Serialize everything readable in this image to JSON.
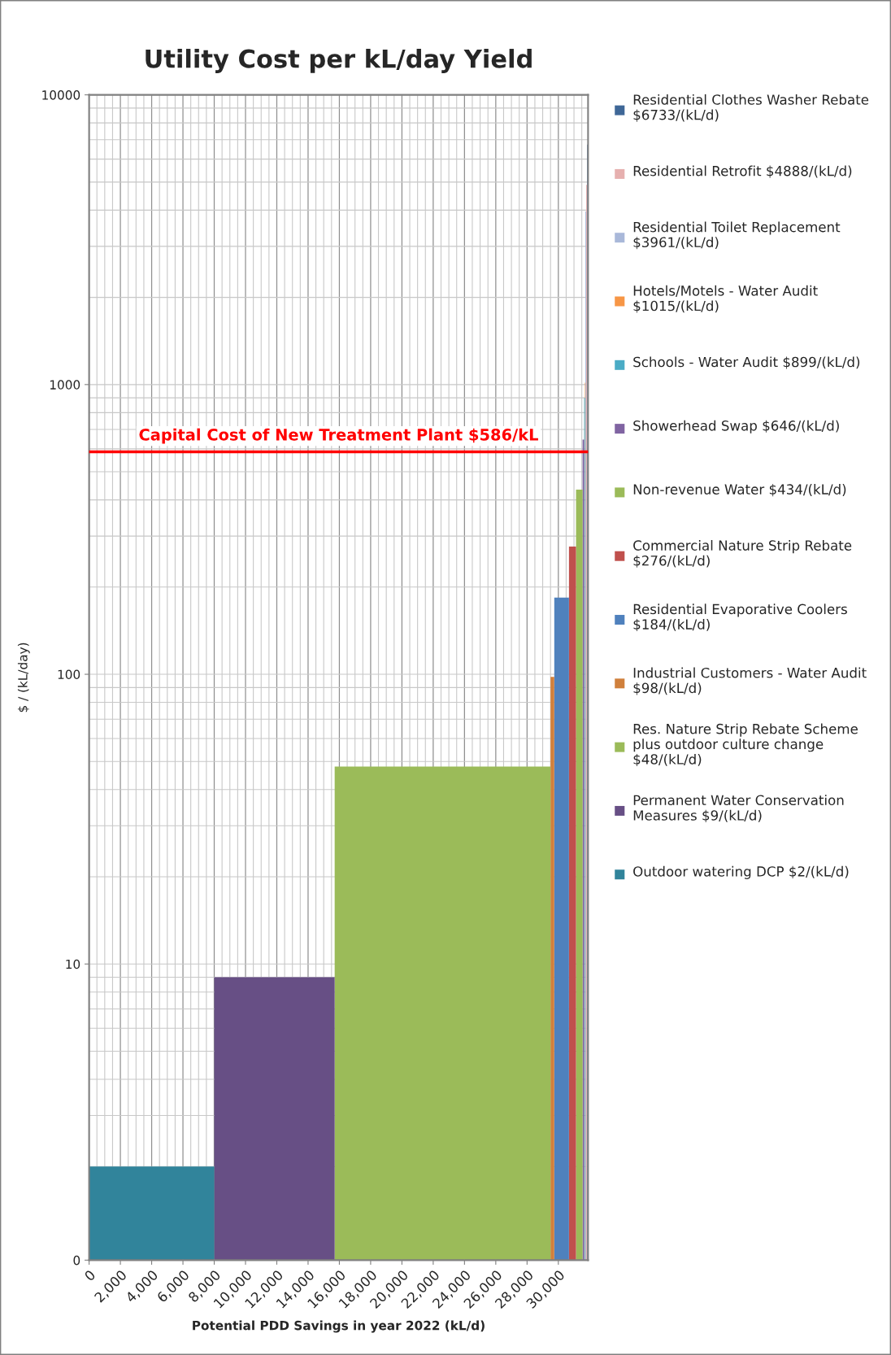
{
  "chart_data": {
    "type": "area",
    "title": "Utility Cost per kL/day Yield",
    "xlabel": "Potential PDD Savings in year 2022 (kL/d)",
    "ylabel": "$ / (kL/day)",
    "log": "y",
    "ylim": [
      0,
      10000
    ],
    "yticks": [
      0,
      10,
      100,
      1000,
      10000
    ],
    "xlim": [
      0,
      31900
    ],
    "xticks": [
      0,
      {
        "value": 2000,
        "label": "2,000"
      },
      {
        "value": 4000,
        "label": "4,000"
      },
      {
        "value": 6000,
        "label": "6,000"
      },
      {
        "value": 8000,
        "label": "8,000"
      },
      {
        "value": 10000,
        "label": "10,000"
      },
      {
        "value": 12000,
        "label": "12,000"
      },
      {
        "value": 14000,
        "label": "14,000"
      },
      {
        "value": 16000,
        "label": "16,000"
      },
      {
        "value": 18000,
        "label": "18,000"
      },
      {
        "value": 20000,
        "label": "20,000"
      },
      {
        "value": 22000,
        "label": "22,000"
      },
      {
        "value": 24000,
        "label": "24,000"
      },
      {
        "value": 26000,
        "label": "26,000"
      },
      {
        "value": 28000,
        "label": "28,000"
      },
      {
        "value": 30000,
        "label": "30,000"
      }
    ],
    "grid": true,
    "legend": "right",
    "ref_lines": [
      {
        "axis": "y",
        "value": 586,
        "label": "Capital Cost of New Treatment Plant $586/kL",
        "color": "#ff0000"
      }
    ],
    "series": [
      {
        "name": "Residential Clothes Washer Rebate $6733/(kL/d)",
        "color": "#3f6797",
        "x": [
          31840,
          31880
        ],
        "values": [
          6733,
          6733
        ]
      },
      {
        "name": "Residential Retrofit $4888/(kL/d)",
        "color": "#e6b0af",
        "x": [
          31780,
          31840
        ],
        "values": [
          4888,
          4888
        ]
      },
      {
        "name": "Residential Toilet Replacement $3961/(kL/d)",
        "color": "#a9b8d9",
        "x": [
          31730,
          31780
        ],
        "values": [
          3961,
          3961
        ]
      },
      {
        "name": "Hotels/Motels - Water Audit $1015/(kL/d)",
        "color": "#f79646",
        "x": [
          31700,
          31730
        ],
        "values": [
          1015,
          1015
        ]
      },
      {
        "name": "Schools - Water Audit $899/(kL/d)",
        "color": "#4bacc6",
        "x": [
          31650,
          31700
        ],
        "values": [
          899,
          899
        ]
      },
      {
        "name": "Showerhead Swap $646/(kL/d)",
        "color": "#8064a2",
        "x": [
          31550,
          31650
        ],
        "values": [
          646,
          646
        ]
      },
      {
        "name": "Non-revenue Water $434/(kL/d)",
        "color": "#9bbb59",
        "x": [
          31130,
          31550
        ],
        "values": [
          434,
          434
        ]
      },
      {
        "name": "Commercial Nature Strip Rebate $276/(kL/d)",
        "color": "#c0504d",
        "x": [
          30680,
          31130
        ],
        "values": [
          276,
          276
        ]
      },
      {
        "name": "Residential Evaporative Coolers $184/(kL/d)",
        "color": "#4f81bd",
        "x": [
          29740,
          30680
        ],
        "values": [
          184,
          184
        ]
      },
      {
        "name": "Industrial Customers - Water Audit $98/(kL/d)",
        "color": "#d0803c",
        "x": [
          29500,
          29740
        ],
        "values": [
          98,
          98
        ]
      },
      {
        "name": "Res. Nature Strip Rebate Scheme plus outdoor culture change $48/(kL/d)",
        "color": "#9bbb59",
        "x": [
          15700,
          29500
        ],
        "values": [
          48,
          48
        ]
      },
      {
        "name": "Permanent Water Conservation Measures $9/(kL/d)",
        "color": "#674f85",
        "x": [
          8000,
          15700
        ],
        "values": [
          9,
          9
        ]
      },
      {
        "name": "Outdoor watering DCP $2/(kL/d)",
        "color": "#31849b",
        "x": [
          0,
          8000
        ],
        "values": [
          2,
          2
        ]
      }
    ]
  }
}
